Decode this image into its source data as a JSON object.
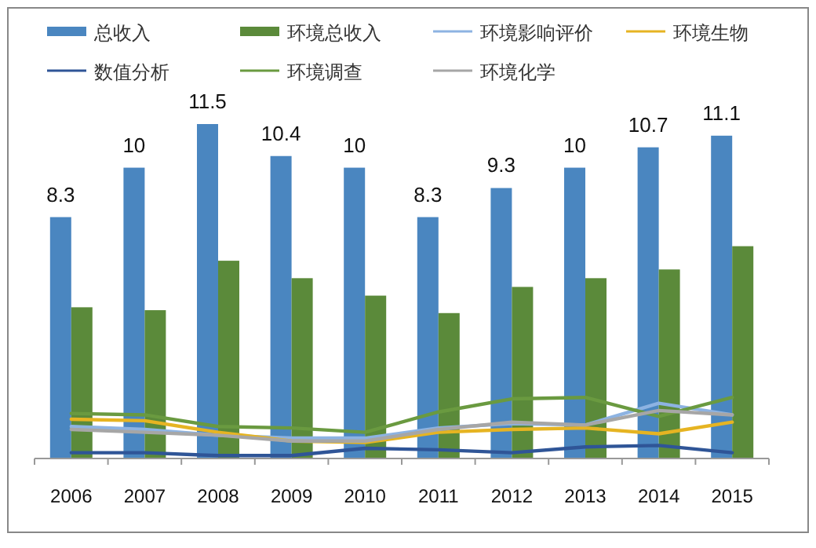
{
  "chart_data": {
    "type": "bar",
    "legend": "top",
    "categories": [
      "2006",
      "2007",
      "2008",
      "2009",
      "2010",
      "2011",
      "2012",
      "2013",
      "2014",
      "2015"
    ],
    "series": [
      {
        "name": "总收入",
        "color": "#4a86c0",
        "values": [
          8.3,
          10,
          11.5,
          10.4,
          10,
          8.3,
          9.3,
          10,
          10.7,
          11.1
        ],
        "value_labels": [
          "8.3",
          "10",
          "11.5",
          "10.4",
          "10",
          "8.3",
          "9.3",
          "10",
          "10.7",
          "11.1"
        ]
      },
      {
        "name": "环境总收入",
        "color": "#5b8a3a",
        "values": [
          5.2,
          5.1,
          6.8,
          6.2,
          5.6,
          5.0,
          5.9,
          6.2,
          6.5,
          7.3
        ]
      },
      {
        "name": "环境影响评价",
        "type": "line",
        "color": "#8db3e2",
        "values": [
          1.1,
          1.0,
          0.8,
          0.7,
          0.7,
          1.05,
          1.2,
          1.15,
          1.9,
          1.5
        ]
      },
      {
        "name": "环境生物",
        "type": "line",
        "color": "#e6b422",
        "values": [
          1.35,
          1.3,
          0.9,
          0.6,
          0.55,
          0.9,
          1.0,
          1.05,
          0.85,
          1.25
        ]
      },
      {
        "name": "数值分析",
        "type": "line",
        "color": "#2f5597",
        "values": [
          0.2,
          0.2,
          0.1,
          0.1,
          0.35,
          0.3,
          0.2,
          0.4,
          0.45,
          0.2
        ]
      },
      {
        "name": "环境调查",
        "type": "line",
        "color": "#6a9a40",
        "values": [
          1.55,
          1.5,
          1.1,
          1.05,
          0.9,
          1.6,
          2.05,
          2.1,
          1.45,
          2.1
        ]
      },
      {
        "name": "环境化学",
        "type": "line",
        "color": "#a6a6a6",
        "values": [
          1.0,
          0.9,
          0.8,
          0.6,
          0.6,
          1.0,
          1.25,
          1.15,
          1.65,
          1.5
        ]
      }
    ]
  }
}
